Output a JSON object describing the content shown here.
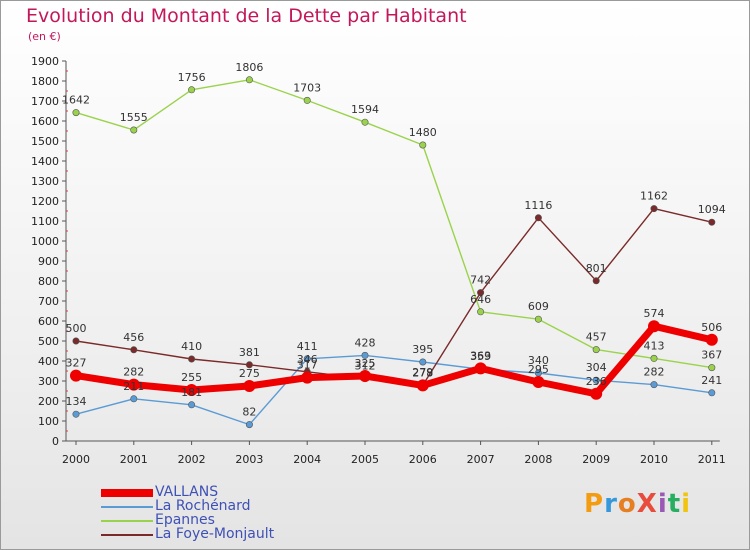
{
  "title": "Evolution du Montant de la Dette par Habitant",
  "subtitle": "(en €)",
  "logo": {
    "text": "ProXiti",
    "colors": [
      "#f39c12",
      "#3498db",
      "#e67e22",
      "#e74c3c",
      "#9b59b6",
      "#27ae60",
      "#f1c40f"
    ]
  },
  "chart_data": {
    "type": "line",
    "title": "Evolution du Montant de la Dette par Habitant",
    "ylabel": "(en €)",
    "xlabel": "",
    "ylim": [
      0,
      1900
    ],
    "yticks": [
      0,
      100,
      200,
      300,
      400,
      500,
      600,
      700,
      800,
      900,
      1000,
      1100,
      1200,
      1300,
      1400,
      1500,
      1600,
      1700,
      1800,
      1900
    ],
    "x": [
      "2000",
      "2001",
      "2002",
      "2003",
      "2004",
      "2005",
      "2006",
      "2007",
      "2008",
      "2009",
      "2010",
      "2011"
    ],
    "grid": false,
    "legend_position": "bottom-left",
    "series": [
      {
        "name": "La Rochénard",
        "color": "#5b9bd5",
        "values": [
          134,
          211,
          181,
          82,
          411,
          428,
          395,
          359,
          340,
          304,
          282,
          241
        ]
      },
      {
        "name": "Epannes",
        "color": "#9ad34b",
        "values": [
          1642,
          1555,
          1756,
          1806,
          1703,
          1594,
          1480,
          646,
          609,
          457,
          413,
          367
        ]
      },
      {
        "name": "La Foye-Monjault",
        "color": "#7a2a2a",
        "values": [
          500,
          456,
          410,
          381,
          346,
          312,
          279,
          742,
          1116,
          801,
          1162,
          1094
        ]
      },
      {
        "name": "VALLANS",
        "color": "#ee0000",
        "values": [
          327,
          282,
          255,
          275,
          317,
          325,
          278,
          363,
          295,
          236,
          574,
          506
        ]
      }
    ]
  }
}
